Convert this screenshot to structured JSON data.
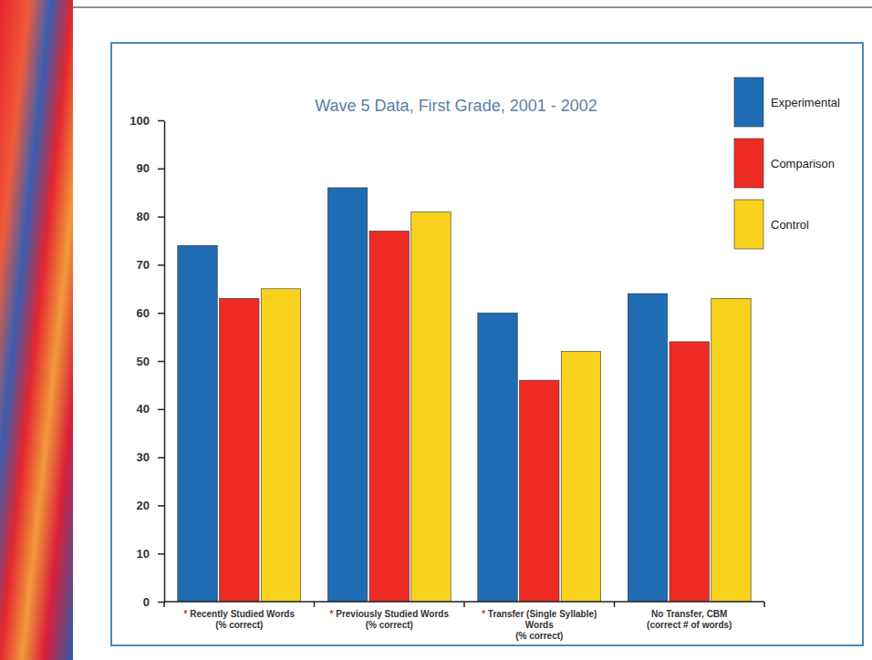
{
  "chart_data": {
    "type": "bar",
    "title": "Wave 5 Data, First Grade, 2001 - 2002",
    "categories": [
      "* Recently Studied Words (% correct)",
      "* Previously Studied Words (% correct)",
      "* Transfer (Single Syllable) Words (% correct)",
      "No Transfer, CBM (correct # of words)"
    ],
    "series": [
      {
        "name": "Experimental",
        "color": "#1f6cb4",
        "values": [
          74,
          86,
          60,
          64
        ]
      },
      {
        "name": "Comparison",
        "color": "#ee2b24",
        "values": [
          63,
          77,
          46,
          54
        ]
      },
      {
        "name": "Control",
        "color": "#f8d21c",
        "values": [
          65,
          81,
          52,
          63
        ]
      }
    ],
    "ylim": [
      0,
      100
    ],
    "yticks": [
      0,
      10,
      20,
      30,
      40,
      50,
      60,
      70,
      80,
      90,
      100
    ],
    "grid": false,
    "legend": "top-right"
  }
}
